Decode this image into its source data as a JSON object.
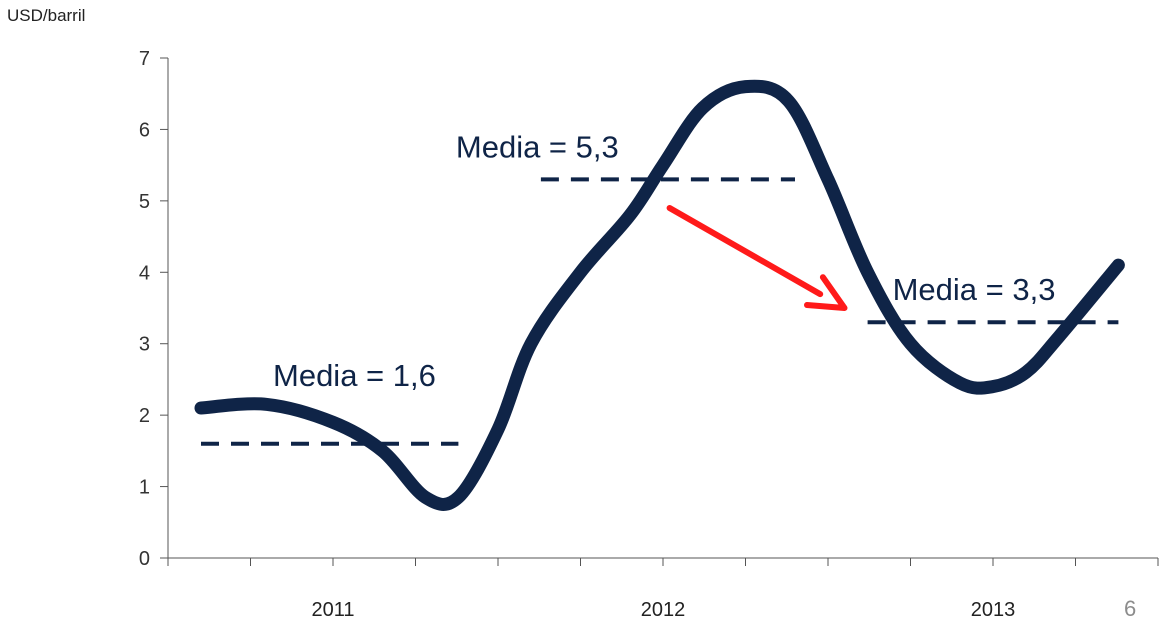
{
  "page_number": "6",
  "colors": {
    "series": "#0f2447",
    "mean": "#0f2447",
    "arrow": "#ff1a1a",
    "axis": "#555555",
    "tick_text": "#333333"
  },
  "chart_data": {
    "type": "line",
    "title": "",
    "ylabel": "USD/barril",
    "xlabel": "",
    "ylim": [
      0,
      7
    ],
    "yticks": [
      "0",
      "1",
      "2",
      "3",
      "4",
      "5",
      "6",
      "7"
    ],
    "x_range": [
      2010.5,
      2013.5
    ],
    "year_labels": [
      {
        "label": "2011",
        "x": 2011.0
      },
      {
        "label": "2012",
        "x": 2012.0
      },
      {
        "label": "2013",
        "x": 2013.0
      }
    ],
    "series": [
      {
        "x": [
          2010.6,
          2010.8,
          2011.0,
          2011.15,
          2011.28,
          2011.38,
          2011.5,
          2011.6,
          2011.75,
          2011.9,
          2012.0,
          2012.12,
          2012.25,
          2012.38,
          2012.5,
          2012.62,
          2012.75,
          2012.9,
          2013.0,
          2013.1,
          2013.2,
          2013.38
        ],
        "values": [
          2.1,
          2.15,
          1.9,
          1.5,
          0.85,
          0.85,
          1.8,
          3.0,
          4.0,
          4.8,
          5.5,
          6.3,
          6.6,
          6.4,
          5.3,
          4.0,
          3.0,
          2.45,
          2.4,
          2.6,
          3.1,
          4.1
        ]
      }
    ],
    "means": [
      {
        "label": "Media = 1,6",
        "value": 1.6,
        "x_start": 2010.6,
        "x_end": 2011.38
      },
      {
        "label": "Media = 5,3",
        "value": 5.3,
        "x_start": 2011.63,
        "x_end": 2012.4
      },
      {
        "label": "Media = 3,3",
        "value": 3.3,
        "x_start": 2012.62,
        "x_end": 2013.38
      }
    ],
    "annotation_arrow": {
      "from": [
        2012.02,
        4.9
      ],
      "to": [
        2012.55,
        3.5
      ]
    },
    "grid": false,
    "legend": "none"
  }
}
